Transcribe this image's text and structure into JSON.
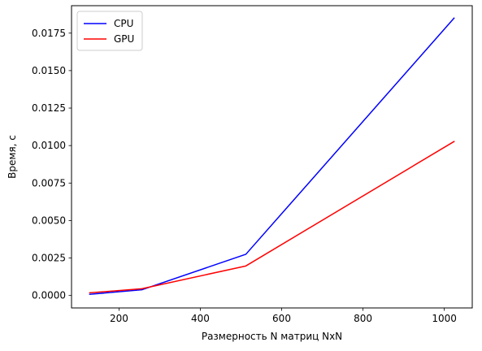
{
  "chart_data": {
    "type": "line",
    "title": "",
    "xlabel": "Размерность N матриц NxN",
    "ylabel": "Время, с",
    "xlim": [
      83.2,
      1068.8
    ],
    "ylim": [
      -0.00083,
      0.01933
    ],
    "xticks": [
      200,
      400,
      600,
      800,
      1000
    ],
    "xtick_labels": [
      "200",
      "400",
      "600",
      "800",
      "1000"
    ],
    "yticks": [
      0.0,
      0.0025,
      0.005,
      0.0075,
      0.01,
      0.0125,
      0.015,
      0.0175
    ],
    "ytick_labels": [
      "0.0000",
      "0.0025",
      "0.0050",
      "0.0075",
      "0.0100",
      "0.0125",
      "0.0150",
      "0.0175"
    ],
    "grid": false,
    "legend_position": "top-left",
    "x": [
      128,
      256,
      512,
      1024
    ],
    "series": [
      {
        "name": "CPU",
        "color": "#0000ff",
        "values": [
          8e-05,
          0.00038,
          0.00275,
          0.0185
        ]
      },
      {
        "name": "GPU",
        "color": "#ff0000",
        "values": [
          0.00018,
          0.00045,
          0.00197,
          0.01027
        ]
      }
    ]
  }
}
